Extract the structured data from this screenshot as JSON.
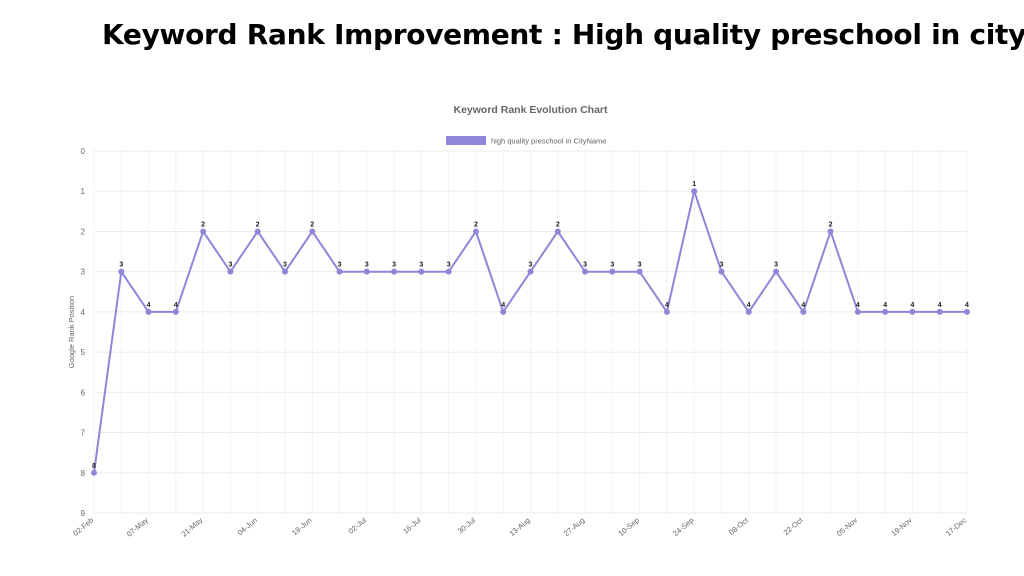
{
  "page": {
    "title": "Keyword Rank Improvement : High quality preschool in city"
  },
  "chart_data": {
    "type": "line",
    "title": "Keyword Rank Evolution Chart",
    "xlabel": "",
    "ylabel": "Google Rank Position",
    "ylim": [
      0,
      9
    ],
    "y_reversed": true,
    "y_ticks": [
      0,
      1,
      2,
      3,
      4,
      5,
      6,
      7,
      8,
      9
    ],
    "grid": true,
    "legend_position": "top",
    "x_tick_labels": [
      "02-Feb",
      "07-May",
      "21-May",
      "04-Jun",
      "18-Jun",
      "02-Jul",
      "16-Jul",
      "30-Jul",
      "13-Aug",
      "27-Aug",
      "10-Sep",
      "24-Sep",
      "08-Oct",
      "22-Oct",
      "05-Nov",
      "19-Nov",
      "17-Dec"
    ],
    "series": [
      {
        "name": "high quality preschool in CityName",
        "color": "#8e86d6",
        "values": [
          8,
          3,
          4,
          4,
          2,
          3,
          2,
          3,
          2,
          3,
          3,
          3,
          3,
          3,
          2,
          4,
          3,
          2,
          3,
          3,
          3,
          4,
          1,
          3,
          4,
          3,
          4,
          2,
          4,
          4,
          4,
          4,
          4
        ]
      }
    ]
  }
}
